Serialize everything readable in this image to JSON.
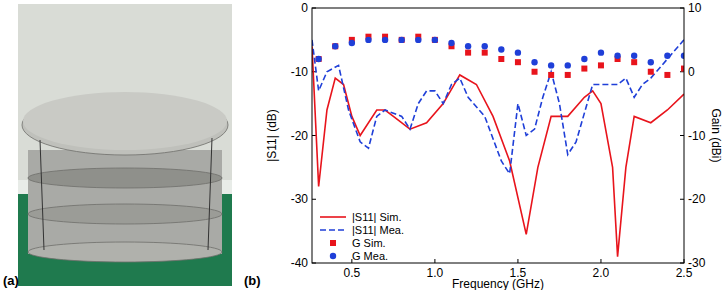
{
  "panel_labels": [
    "(a)",
    "(b)"
  ],
  "chart_data": {
    "type": "line",
    "x_label": "Frequency (GHz)",
    "y_label": "|S11| (dB)",
    "y2_label": "Gain (dBi)",
    "xlim": [
      0.26,
      2.5
    ],
    "xticks": [
      0.5,
      {
        "value": 1,
        "label": "1.0"
      },
      1.5,
      {
        "value": 2,
        "label": "2.0"
      },
      2.5
    ],
    "ylim": [
      -40,
      0
    ],
    "yticks": [
      0,
      -10,
      -20,
      -30,
      -40
    ],
    "y2lim": [
      -30,
      10
    ],
    "y2ticks": [
      10,
      0,
      -10,
      -20,
      -30
    ],
    "grid": false,
    "legend": "lower left",
    "series": [
      {
        "name": "|S11| Sim.",
        "type": "line",
        "color": "#e8141c",
        "line_style": "solid",
        "x": [
          0.26,
          0.3,
          0.35,
          0.4,
          0.45,
          0.5,
          0.55,
          0.65,
          0.7,
          0.75,
          0.85,
          0.95,
          1.05,
          1.15,
          1.25,
          1.35,
          1.45,
          1.55,
          1.62,
          1.7,
          1.8,
          1.9,
          1.95,
          2.0,
          2.07,
          2.1,
          2.15,
          2.2,
          2.3,
          2.4,
          2.5
        ],
        "values": [
          -6,
          -28,
          -16,
          -11,
          -12,
          -17,
          -20,
          -16,
          -16,
          -17,
          -19,
          -18,
          -15,
          -10.5,
          -12,
          -17,
          -24,
          -35.5,
          -25,
          -17,
          -17,
          -14,
          -13,
          -15,
          -25,
          -39,
          -25,
          -17,
          -18,
          -16,
          -13.5
        ]
      },
      {
        "name": "|S11| Mea.",
        "type": "line",
        "color": "#1f3fd8",
        "line_style": "dashed",
        "x": [
          0.26,
          0.3,
          0.35,
          0.42,
          0.48,
          0.55,
          0.6,
          0.65,
          0.7,
          0.8,
          0.85,
          0.9,
          0.95,
          1.0,
          1.05,
          1.1,
          1.15,
          1.2,
          1.3,
          1.4,
          1.45,
          1.5,
          1.55,
          1.6,
          1.65,
          1.7,
          1.75,
          1.8,
          1.85,
          1.95,
          2.05,
          2.1,
          2.15,
          2.2,
          2.25,
          2.3,
          2.4,
          2.5
        ],
        "values": [
          -5,
          -13,
          -10,
          -9,
          -16,
          -21,
          -22,
          -17,
          -16,
          -17,
          -19,
          -15,
          -13,
          -13,
          -15,
          -12,
          -11,
          -14,
          -17,
          -24,
          -26,
          -15,
          -20,
          -19,
          -14,
          -10,
          -15,
          -23,
          -21,
          -12,
          -12,
          -12,
          -11,
          -14,
          -12,
          -11,
          -8,
          -5
        ]
      },
      {
        "name": "G Sim.",
        "type": "scatter",
        "axis": "y2",
        "color": "#e8141c",
        "marker": "square",
        "x": [
          0.3,
          0.4,
          0.5,
          0.6,
          0.7,
          0.8,
          0.9,
          1.0,
          1.1,
          1.2,
          1.3,
          1.4,
          1.5,
          1.6,
          1.7,
          1.8,
          1.9,
          2.0,
          2.1,
          2.2,
          2.3,
          2.4,
          2.5
        ],
        "values": [
          2,
          4,
          5,
          5.5,
          5.5,
          5,
          5.5,
          5,
          4,
          3,
          3,
          2,
          1.5,
          0,
          -0.5,
          -0.5,
          0.5,
          1,
          2,
          1.5,
          0,
          -0.5,
          0.5
        ]
      },
      {
        "name": "G Mea.",
        "type": "scatter",
        "axis": "y2",
        "color": "#1f3fd8",
        "marker": "circle",
        "x": [
          0.3,
          0.4,
          0.5,
          0.6,
          0.7,
          0.8,
          0.9,
          1.0,
          1.1,
          1.2,
          1.3,
          1.4,
          1.5,
          1.6,
          1.7,
          1.8,
          1.9,
          2.0,
          2.1,
          2.2,
          2.3,
          2.4,
          2.5
        ],
        "values": [
          2,
          4,
          4.5,
          5,
          5,
          5,
          5,
          5,
          4.5,
          4,
          4,
          3.5,
          3,
          1.5,
          1,
          1,
          2,
          3,
          2.5,
          2.5,
          1.5,
          2.5,
          2.5
        ]
      }
    ]
  }
}
